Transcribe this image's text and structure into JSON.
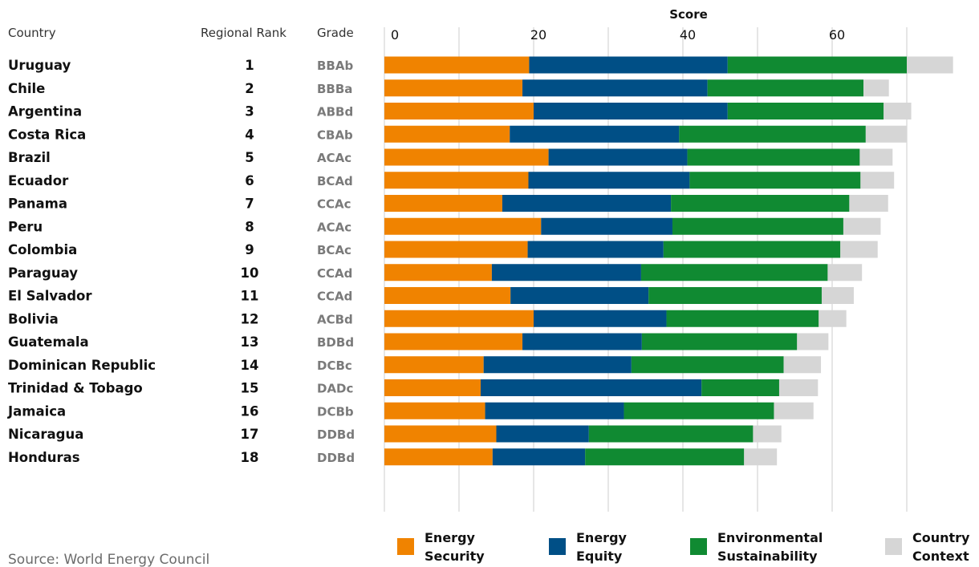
{
  "headers": {
    "country": "Country",
    "rank": "Regional Rank",
    "grade": "Grade",
    "axis_title": "Score"
  },
  "source": "Source: World Energy Council",
  "colors": {
    "energy_security": "#f08300",
    "energy_equity": "#004f86",
    "environmental_sustainability": "#108a32",
    "country_context": "#d6d6d6"
  },
  "chart_data": {
    "type": "bar",
    "orientation": "horizontal",
    "stacked": true,
    "xlabel": "Score",
    "xlim": [
      0,
      75
    ],
    "xticks": [
      0,
      20,
      40,
      60
    ],
    "grid": true,
    "legend_position": "bottom",
    "categories": [
      "Uruguay",
      "Chile",
      "Argentina",
      "Costa Rica",
      "Brazil",
      "Ecuador",
      "Panama",
      "Peru",
      "Colombia",
      "Paraguay",
      "El Salvador",
      "Bolivia",
      "Guatemala",
      "Dominican Republic",
      "Trinidad & Tobago",
      "Jamaica",
      "Nicaragua",
      "Honduras"
    ],
    "ranks": [
      "1",
      "2",
      "3",
      "4",
      "5",
      "6",
      "7",
      "8",
      "9",
      "10",
      "11",
      "12",
      "13",
      "14",
      "15",
      "16",
      "17",
      "18"
    ],
    "grades": [
      "BBAb",
      "BBBa",
      "ABBd",
      "CBAb",
      "ACAc",
      "BCAd",
      "CCAc",
      "ACAc",
      "BCAc",
      "CCAd",
      "CCAd",
      "ACBd",
      "BDBd",
      "DCBc",
      "DADc",
      "DCBb",
      "DDBd",
      "DDBd"
    ],
    "series": [
      {
        "name": "Energy Security",
        "color": "#f08300",
        "values": [
          19.4,
          18.5,
          20.0,
          16.8,
          22.0,
          19.3,
          15.8,
          21.0,
          19.2,
          14.4,
          16.9,
          20.0,
          18.5,
          13.3,
          12.9,
          13.5,
          15.0,
          14.5
        ]
      },
      {
        "name": "Energy Equity",
        "color": "#004f86",
        "values": [
          26.6,
          24.8,
          26.0,
          22.7,
          18.6,
          21.6,
          22.6,
          17.6,
          18.2,
          20.0,
          18.5,
          17.8,
          16.0,
          19.8,
          29.6,
          18.6,
          12.4,
          12.4
        ]
      },
      {
        "name": "Environmental Sustainability",
        "color": "#108a32",
        "values": [
          24.0,
          20.9,
          20.9,
          25.0,
          23.1,
          22.9,
          23.9,
          22.9,
          23.7,
          25.0,
          23.2,
          20.4,
          20.8,
          20.4,
          10.4,
          20.1,
          22.0,
          21.3
        ]
      },
      {
        "name": "Country Context",
        "color": "#d6d6d6",
        "values": [
          6.2,
          3.4,
          3.7,
          5.5,
          4.4,
          4.5,
          5.2,
          5.0,
          5.0,
          4.6,
          4.3,
          3.7,
          4.2,
          5.0,
          5.2,
          5.3,
          3.8,
          4.4
        ]
      }
    ]
  },
  "legend": [
    {
      "line1": "Energy",
      "line2": "Security",
      "color": "#f08300"
    },
    {
      "line1": "Energy",
      "line2": "Equity",
      "color": "#004f86"
    },
    {
      "line1": "Environmental",
      "line2": "Sustainability",
      "color": "#108a32"
    },
    {
      "line1": "Country",
      "line2": "Context",
      "color": "#d6d6d6"
    }
  ]
}
